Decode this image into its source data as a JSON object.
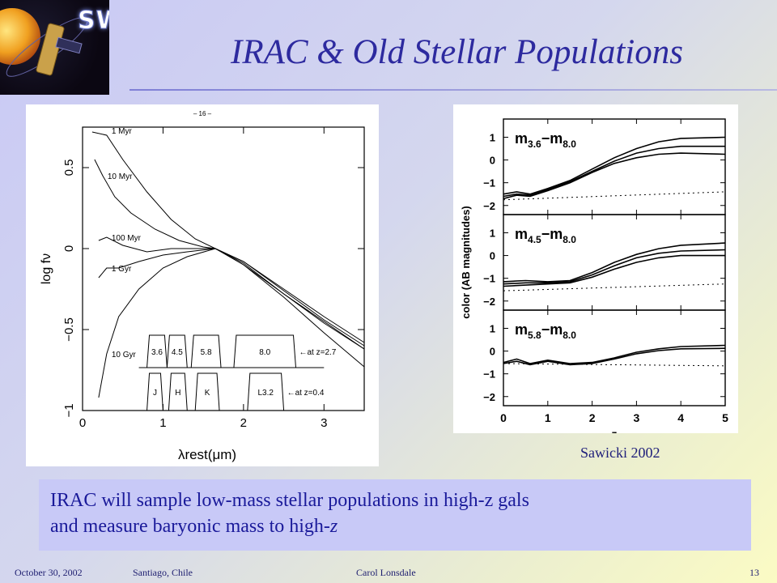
{
  "slide": {
    "title": "IRAC & Old Stellar Populations",
    "logo_text": "SWIRE",
    "credit": "Sawicki 2002",
    "caption_line1": "IRAC will sample low-mass stellar populations in high-z gals",
    "caption_line2_prefix": "and measure baryonic mass to high-",
    "caption_line2_italic": "z",
    "footer": {
      "date": "October 30, 2002",
      "location": "Santiago, Chile",
      "author": "Carol Lonsdale",
      "page": "13"
    }
  },
  "chart_data": [
    {
      "type": "line",
      "page_mark": "– 16 –",
      "xlabel": "λrest(μm)",
      "ylabel": "log fν",
      "xlim": [
        0,
        3.5
      ],
      "ylim": [
        -1.0,
        0.75
      ],
      "x_ticks": [
        "0",
        "1",
        "2",
        "3"
      ],
      "y_ticks": [
        "−1",
        "−0.5",
        "0",
        "0.5"
      ],
      "series": [
        {
          "name": "1 Myr",
          "x": [
            0.12,
            0.3,
            0.5,
            0.8,
            1.1,
            1.4,
            1.65,
            2.0,
            2.5,
            3.0,
            3.5
          ],
          "y": [
            0.72,
            0.7,
            0.55,
            0.35,
            0.18,
            0.06,
            0.0,
            -0.1,
            -0.3,
            -0.52,
            -0.73
          ]
        },
        {
          "name": "10 Myr",
          "x": [
            0.15,
            0.25,
            0.4,
            0.6,
            0.9,
            1.2,
            1.5,
            1.65,
            2.0,
            2.5,
            3.0,
            3.5
          ],
          "y": [
            0.55,
            0.45,
            0.32,
            0.22,
            0.12,
            0.05,
            0.01,
            0.0,
            -0.1,
            -0.28,
            -0.45,
            -0.62
          ]
        },
        {
          "name": "100 Myr",
          "x": [
            0.2,
            0.3,
            0.5,
            0.8,
            1.1,
            1.4,
            1.65,
            2.0,
            2.5,
            3.0,
            3.5
          ],
          "y": [
            0.05,
            0.07,
            0.02,
            -0.02,
            0.0,
            0.0,
            0.0,
            -0.08,
            -0.25,
            -0.42,
            -0.58
          ]
        },
        {
          "name": "1 Gyr",
          "x": [
            0.2,
            0.3,
            0.45,
            0.7,
            1.0,
            1.3,
            1.65,
            2.0,
            2.5,
            3.0,
            3.5
          ],
          "y": [
            -0.18,
            -0.12,
            -0.12,
            -0.08,
            -0.04,
            -0.02,
            0.0,
            -0.08,
            -0.26,
            -0.44,
            -0.6
          ]
        },
        {
          "name": "10 Gyr",
          "x": [
            0.2,
            0.3,
            0.45,
            0.7,
            1.0,
            1.3,
            1.65,
            2.0,
            2.5,
            3.0,
            3.5
          ],
          "y": [
            -0.92,
            -0.65,
            -0.42,
            -0.25,
            -0.12,
            -0.05,
            0.0,
            -0.09,
            -0.28,
            -0.46,
            -0.62
          ]
        }
      ],
      "filters_z27": {
        "label": "←at z=2.7",
        "bands": [
          {
            "name": "3.6",
            "x0": 0.8,
            "x1": 1.05
          },
          {
            "name": "4.5",
            "x0": 1.05,
            "x1": 1.3
          },
          {
            "name": "5.8",
            "x0": 1.35,
            "x1": 1.72
          },
          {
            "name": "8.0",
            "x0": 1.88,
            "x1": 2.65
          }
        ]
      },
      "filters_z04": {
        "label": "←at z=0.4",
        "bands": [
          {
            "name": "J",
            "x0": 0.8,
            "x1": 1.0
          },
          {
            "name": "H",
            "x0": 1.07,
            "x1": 1.3
          },
          {
            "name": "K",
            "x0": 1.4,
            "x1": 1.7
          },
          {
            "name": "L3.2",
            "x0": 2.05,
            "x1": 2.5
          }
        ]
      }
    },
    {
      "type": "line",
      "ylabel": "color (AB magnitudes)",
      "xlabel": "z",
      "xlim": [
        0,
        5
      ],
      "x_ticks": [
        "0",
        "1",
        "2",
        "3",
        "4",
        "5"
      ],
      "panels": [
        {
          "label": "m3.6−m8.0",
          "label_main": "m",
          "sub1": "3.6",
          "sep": "−m",
          "sub2": "8.0",
          "ylim": [
            -2.4,
            1.8
          ],
          "y_ticks": [
            "1",
            "0",
            "−1",
            "−2"
          ],
          "curves": [
            [
              [
                0,
                -1.5
              ],
              [
                0.3,
                -1.4
              ],
              [
                0.6,
                -1.5
              ],
              [
                1.0,
                -1.25
              ],
              [
                1.5,
                -0.9
              ],
              [
                2,
                -0.4
              ],
              [
                2.5,
                0.1
              ],
              [
                3,
                0.5
              ],
              [
                3.5,
                0.8
              ],
              [
                4,
                0.95
              ],
              [
                5,
                1.0
              ]
            ],
            [
              [
                0,
                -1.6
              ],
              [
                0.3,
                -1.5
              ],
              [
                0.6,
                -1.55
              ],
              [
                1.0,
                -1.3
              ],
              [
                1.5,
                -0.95
              ],
              [
                2,
                -0.5
              ],
              [
                2.5,
                -0.05
              ],
              [
                3,
                0.3
              ],
              [
                3.5,
                0.5
              ],
              [
                4,
                0.6
              ],
              [
                5,
                0.6
              ]
            ],
            [
              [
                0,
                -1.7
              ],
              [
                0.3,
                -1.55
              ],
              [
                0.6,
                -1.6
              ],
              [
                1.0,
                -1.35
              ],
              [
                1.5,
                -1.0
              ],
              [
                2,
                -0.55
              ],
              [
                2.5,
                -0.15
              ],
              [
                3,
                0.1
              ],
              [
                3.5,
                0.25
              ],
              [
                4,
                0.3
              ],
              [
                5,
                0.25
              ]
            ]
          ],
          "dotted": [
            [
              0,
              -1.75
            ],
            [
              5,
              -1.4
            ]
          ]
        },
        {
          "label": "m4.5−m8.0",
          "label_main": "m",
          "sub1": "4.5",
          "sep": "−m",
          "sub2": "8.0",
          "ylim": [
            -2.4,
            1.8
          ],
          "y_ticks": [
            "1",
            "0",
            "−1",
            "−2"
          ],
          "curves": [
            [
              [
                0,
                -1.15
              ],
              [
                0.5,
                -1.1
              ],
              [
                1.0,
                -1.15
              ],
              [
                1.5,
                -1.1
              ],
              [
                2,
                -0.75
              ],
              [
                2.5,
                -0.3
              ],
              [
                3,
                0.05
              ],
              [
                3.5,
                0.3
              ],
              [
                4,
                0.45
              ],
              [
                5,
                0.55
              ]
            ],
            [
              [
                0,
                -1.25
              ],
              [
                0.5,
                -1.2
              ],
              [
                1.0,
                -1.2
              ],
              [
                1.5,
                -1.15
              ],
              [
                2,
                -0.85
              ],
              [
                2.5,
                -0.45
              ],
              [
                3,
                -0.1
              ],
              [
                3.5,
                0.1
              ],
              [
                4,
                0.2
              ],
              [
                5,
                0.25
              ]
            ],
            [
              [
                0,
                -1.35
              ],
              [
                0.5,
                -1.3
              ],
              [
                1.0,
                -1.25
              ],
              [
                1.5,
                -1.2
              ],
              [
                2,
                -0.95
              ],
              [
                2.5,
                -0.6
              ],
              [
                3,
                -0.3
              ],
              [
                3.5,
                -0.1
              ],
              [
                4,
                0.0
              ],
              [
                5,
                0.0
              ]
            ]
          ],
          "dotted": [
            [
              0,
              -1.55
            ],
            [
              5,
              -1.25
            ]
          ]
        },
        {
          "label": "m5.8−m8.0",
          "label_main": "m",
          "sub1": "5.8",
          "sep": "−m",
          "sub2": "8.0",
          "ylim": [
            -2.4,
            1.8
          ],
          "y_ticks": [
            "1",
            "0",
            "−1",
            "−2"
          ],
          "curves": [
            [
              [
                0,
                -0.5
              ],
              [
                0.3,
                -0.35
              ],
              [
                0.6,
                -0.55
              ],
              [
                1.0,
                -0.4
              ],
              [
                1.5,
                -0.55
              ],
              [
                2,
                -0.5
              ],
              [
                2.5,
                -0.3
              ],
              [
                3,
                -0.05
              ],
              [
                3.5,
                0.1
              ],
              [
                4,
                0.2
              ],
              [
                5,
                0.25
              ]
            ],
            [
              [
                0,
                -0.55
              ],
              [
                0.3,
                -0.45
              ],
              [
                0.6,
                -0.6
              ],
              [
                1.0,
                -0.45
              ],
              [
                1.5,
                -0.6
              ],
              [
                2,
                -0.55
              ],
              [
                2.5,
                -0.35
              ],
              [
                3,
                -0.12
              ],
              [
                3.5,
                0.02
              ],
              [
                4,
                0.1
              ],
              [
                5,
                0.12
              ]
            ]
          ],
          "dotted": [
            [
              0,
              -0.55
            ],
            [
              5,
              -0.65
            ]
          ]
        }
      ]
    }
  ]
}
